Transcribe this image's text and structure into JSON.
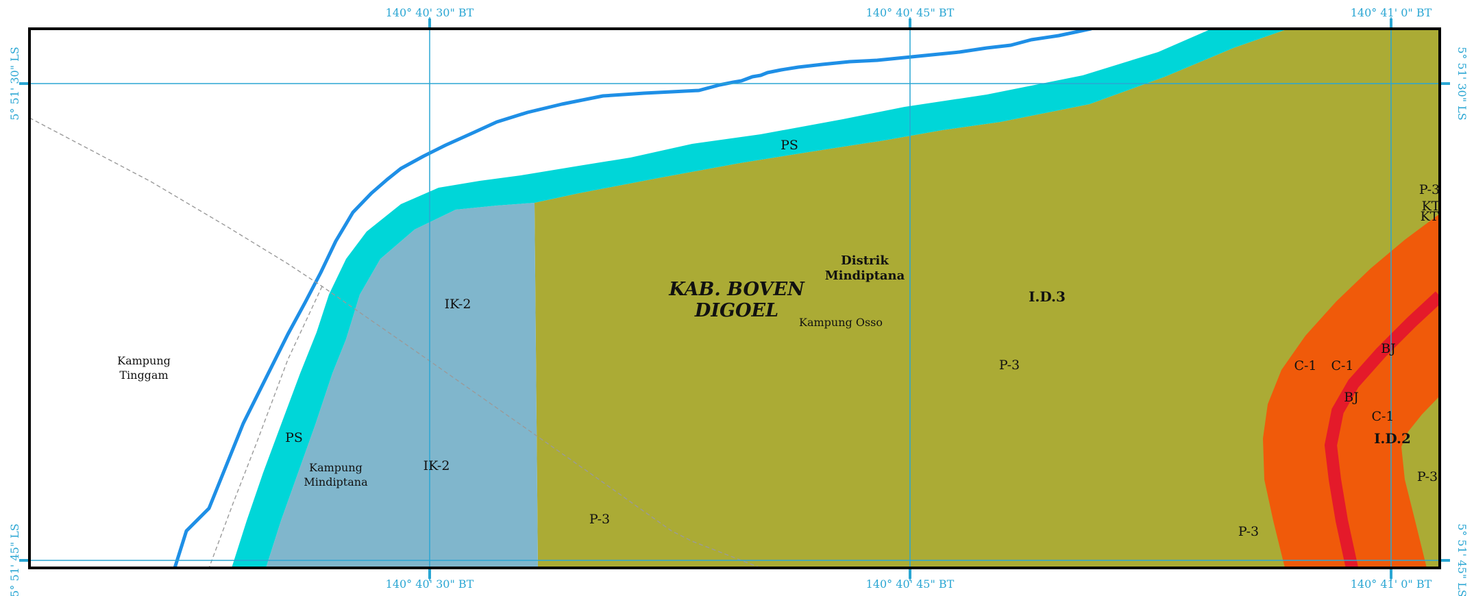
{
  "map": {
    "colors": {
      "river": "#1e8fe6",
      "ps_zone": "#00d6d8",
      "ik2_zone": "#80b6cc",
      "p3_zone": "#abab35",
      "c1_zone": "#f05a0a",
      "bj_zone": "#e41a2a",
      "grid": "#2aa6d3",
      "frame": "#000000",
      "boundary": "#9a9a9a"
    },
    "coordinates": {
      "top": [
        "140° 40' 30\" BT",
        "140° 40' 45\" BT",
        "140° 41' 0\" BT"
      ],
      "bottom": [
        "140° 40' 30\" BT",
        "140° 40' 45\" BT",
        "140° 41' 0\" BT"
      ],
      "left": [
        "5° 51' 30\" LS",
        "5° 51' 45\" LS"
      ],
      "right": [
        "5° 51' 30\" LS",
        "5° 51' 45\" LS"
      ]
    },
    "zones": {
      "ps_1": "PS",
      "ps_2": "PS",
      "ik2_1": "IK-2",
      "ik2_2": "IK-2",
      "p3_1": "P-3",
      "p3_2": "P-3",
      "p3_3": "P-3",
      "p3_4": "P-3",
      "p3_5": "P-3",
      "c1_1": "C-1",
      "c1_2": "C-1",
      "c1_3": "C-1",
      "bj_1": "BJ",
      "bj_2": "BJ",
      "kt_1": "KT",
      "kt_2": "KT",
      "id3": "I.D.3",
      "id2": "I.D.2"
    },
    "places": {
      "regency_line1": "KAB. BOVEN",
      "regency_line2": "DIGOEL",
      "district_line1": "Distrik",
      "district_line2": "Mindiptana",
      "osso": "Kampung Osso",
      "tinggam_line1": "Kampung",
      "tinggam_line2": "Tinggam",
      "mindiptana_line1": "Kampung",
      "mindiptana_line2": "Mindiptana"
    }
  }
}
